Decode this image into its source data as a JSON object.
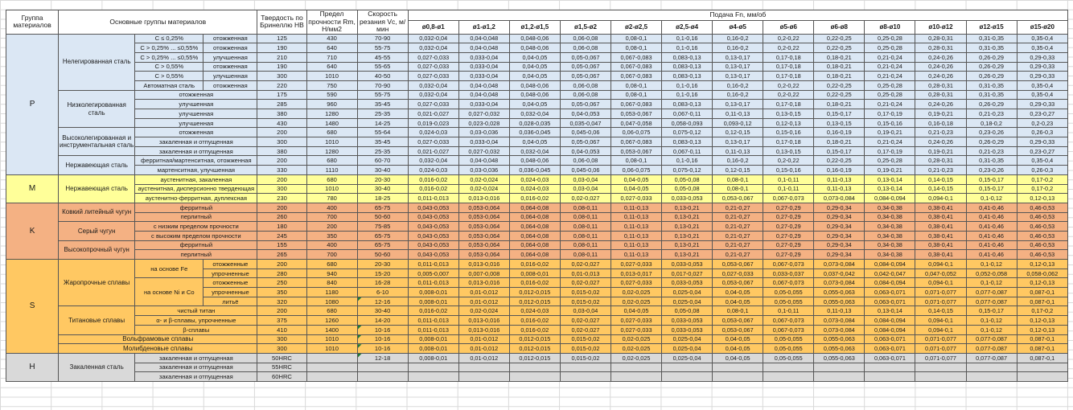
{
  "colors": {
    "groups": {
      "p": "#DBE7F4",
      "m": "#FFFF99",
      "k": "#F4B183",
      "s": "#FFC862",
      "h": "#D9D9D9"
    },
    "marker": "#1E7B34",
    "border": "#565656",
    "grid": "#D9D9D9"
  },
  "table": {
    "headers": {
      "group": "Группа материалов",
      "main_groups": "Основные группы материалов",
      "hardness": "Твердость по Бринеллю HB",
      "strength": "Предел прочности Rm, Н/мм2",
      "speed": "Скорость резания Vc, м/мин",
      "feed": "Подача Fn, мм/об",
      "diameters": [
        "ø0,8-ø1",
        "ø1-ø1,2",
        "ø1,2-ø1,5",
        "ø1,5-ø2",
        "ø2-ø2,5",
        "ø2,5-ø4",
        "ø4-ø5",
        "ø5-ø6",
        "ø6-ø8",
        "ø8-ø10",
        "ø10-ø12",
        "ø12-ø15",
        "ø15-ø20"
      ]
    },
    "patterns": {
      "A": [
        "0,032-0,04",
        "0,04-0,048",
        "0,048-0,06",
        "0,06-0,08",
        "0,08-0,1",
        "0,1-0,16",
        "0,16-0,2",
        "0,2-0,22",
        "0,22-0,25",
        "0,25-0,28",
        "0,28-0,31",
        "0,31-0,35",
        "0,35-0,4"
      ],
      "B": [
        "0,027-0,033",
        "0,033-0,04",
        "0,04-0,05",
        "0,05-0,067",
        "0,067-0,083",
        "0,083-0,13",
        "0,13-0,17",
        "0,17-0,18",
        "0,18-0,21",
        "0,21-0,24",
        "0,24-0,26",
        "0,26-0,29",
        "0,29-0,33"
      ],
      "C": [
        "0,021-0,027",
        "0,027-0,032",
        "0,032-0,04",
        "0,04-0,053",
        "0,053-0,067",
        "0,067-0,11",
        "0,11-0,13",
        "0,13-0,15",
        "0,15-0,17",
        "0,17-0,19",
        "0,19-0,21",
        "0,21-0,23",
        "0,23-0,27"
      ],
      "D": [
        "0,019-0,023",
        "0,023-0,028",
        "0,028-0,035",
        "0,035-0,047",
        "0,047-0,058",
        "0,058-0,093",
        "0,093-0,12",
        "0,12-0,13",
        "0,13-0,15",
        "0,15-0,16",
        "0,16-0,18",
        "0,18-0,2",
        "0,2-0,23"
      ],
      "E": [
        "0,024-0,03",
        "0,03-0,036",
        "0,036-0,045",
        "0,045-0,06",
        "0,06-0,075",
        "0,075-0,12",
        "0,12-0,15",
        "0,15-0,16",
        "0,16-0,19",
        "0,19-0,21",
        "0,21-0,23",
        "0,23-0,26",
        "0,26-0,3"
      ],
      "F": [
        "0,016-0,02",
        "0,02-0,024",
        "0,024-0,03",
        "0,03-0,04",
        "0,04-0,05",
        "0,05-0,08",
        "0,08-0,1",
        "0,1-0,11",
        "0,11-0,13",
        "0,13-0,14",
        "0,14-0,15",
        "0,15-0,17",
        "0,17-0,2"
      ],
      "G": [
        "0,011-0,013",
        "0,013-0,016",
        "0,016-0,02",
        "0,02-0,027",
        "0,027-0,033",
        "0,033-0,053",
        "0,053-0,067",
        "0,067-0,073",
        "0,073-0,084",
        "0,084-0,094",
        "0,094-0,1",
        "0,1-0,12",
        "0,12-0,13"
      ],
      "K": [
        "0,043-0,053",
        "0,053-0,064",
        "0,064-0,08",
        "0,08-0,11",
        "0,11-0,13",
        "0,13-0,21",
        "0,21-0,27",
        "0,27-0,29",
        "0,29-0,34",
        "0,34-0,38",
        "0,38-0,41",
        "0,41-0,46",
        "0,46-0,53"
      ],
      "I": [
        "0,005-0,007",
        "0,007-0,008",
        "0,008-0,01",
        "0,01-0,013",
        "0,013-0,017",
        "0,017-0,027",
        "0,027-0,033",
        "0,033-0,037",
        "0,037-0,042",
        "0,042-0,047",
        "0,047-0,052",
        "0,052-0,058",
        "0,058-0,062"
      ],
      "J": [
        "0,008-0,01",
        "0,01-0,012",
        "0,012-0,015",
        "0,015-0,02",
        "0,02-0,025",
        "0,025-0,04",
        "0,04-0,05",
        "0,05-0,055",
        "0,055-0,063",
        "0,063-0,071",
        "0,071-0,077",
        "0,077-0,087",
        "0,087-0,1"
      ],
      "X": [
        "",
        "",
        "",
        "",
        "",
        "",
        "",
        "",
        "",
        "",
        "",
        "",
        ""
      ]
    },
    "rows": [
      {
        "g": "p",
        "lead": [
          {
            "t": "P",
            "rs": 15,
            "k": "group"
          },
          {
            "t": "Нелегированная сталь",
            "rs": 6,
            "k": "family"
          },
          {
            "t": "C ≤ 0,25%",
            "k": "spec"
          },
          {
            "t": "отожженная",
            "k": "cond"
          }
        ],
        "hb": "125",
        "rm": "430",
        "vc": "70-90",
        "f": "A"
      },
      {
        "g": "p",
        "lead": [
          {
            "t": "C > 0,25% ... ≤0,55%",
            "k": "spec"
          },
          {
            "t": "отожженная",
            "k": "cond"
          }
        ],
        "hb": "190",
        "rm": "640",
        "vc": "55-75",
        "f": "A"
      },
      {
        "g": "p",
        "lead": [
          {
            "t": "C > 0,25% ... ≤0,55%",
            "k": "spec"
          },
          {
            "t": "улучшенная",
            "k": "cond"
          }
        ],
        "hb": "210",
        "rm": "710",
        "vc": "45-55",
        "f": "B"
      },
      {
        "g": "p",
        "lead": [
          {
            "t": "C > 0,55%",
            "k": "spec"
          },
          {
            "t": "отожженная",
            "k": "cond"
          }
        ],
        "hb": "190",
        "rm": "640",
        "vc": "55-65",
        "f": "B"
      },
      {
        "g": "p",
        "lead": [
          {
            "t": "C > 0,55%",
            "k": "spec"
          },
          {
            "t": "улучшенная",
            "k": "cond"
          }
        ],
        "hb": "300",
        "rm": "1010",
        "vc": "40-50",
        "f": "B"
      },
      {
        "g": "p",
        "lead": [
          {
            "t": "Автоматная сталь",
            "k": "spec"
          },
          {
            "t": "отожженная",
            "k": "cond"
          }
        ],
        "hb": "220",
        "rm": "750",
        "vc": "70-90",
        "f": "A"
      },
      {
        "g": "p",
        "lead": [
          {
            "t": "Низколегированная сталь",
            "rs": 4,
            "k": "family"
          },
          {
            "t": "отожженная",
            "cs": 2,
            "k": "cond"
          }
        ],
        "hb": "175",
        "rm": "590",
        "vc": "55-75",
        "f": "A"
      },
      {
        "g": "p",
        "lead": [
          {
            "t": "улучшенная",
            "cs": 2,
            "k": "cond"
          }
        ],
        "hb": "285",
        "rm": "960",
        "vc": "35-45",
        "f": "B"
      },
      {
        "g": "p",
        "lead": [
          {
            "t": "улучшенная",
            "cs": 2,
            "k": "cond"
          }
        ],
        "hb": "380",
        "rm": "1280",
        "vc": "25-35",
        "f": "C"
      },
      {
        "g": "p",
        "lead": [
          {
            "t": "улучшенная",
            "cs": 2,
            "k": "cond"
          }
        ],
        "hb": "430",
        "rm": "1480",
        "vc": "14-25",
        "f": "D"
      },
      {
        "g": "p",
        "lead": [
          {
            "t": "Высоколегированная и инструментальная сталь",
            "rs": 3,
            "k": "family"
          },
          {
            "t": "отожженная",
            "cs": 2,
            "k": "cond"
          }
        ],
        "hb": "200",
        "rm": "680",
        "vc": "55-64",
        "f": "E"
      },
      {
        "g": "p",
        "lead": [
          {
            "t": "закаленная и отпущенная",
            "cs": 2,
            "k": "cond"
          }
        ],
        "hb": "300",
        "rm": "1010",
        "vc": "35-45",
        "f": "B"
      },
      {
        "g": "p",
        "lead": [
          {
            "t": "закаленная и отпущенная",
            "cs": 2,
            "k": "cond"
          }
        ],
        "hb": "380",
        "rm": "1280",
        "vc": "25-35",
        "f": "C"
      },
      {
        "g": "p",
        "lead": [
          {
            "t": "Нержавеющая сталь",
            "rs": 2,
            "k": "family"
          },
          {
            "t": "ферритная/мартенситная, отожженная",
            "cs": 2,
            "k": "cond"
          }
        ],
        "hb": "200",
        "rm": "680",
        "vc": "60-70",
        "f": "A"
      },
      {
        "g": "p",
        "lead": [
          {
            "t": "мартенситная, улучшенная",
            "cs": 2,
            "k": "cond"
          }
        ],
        "hb": "330",
        "rm": "1110",
        "vc": "30-40",
        "f": "E"
      },
      {
        "g": "m",
        "lead": [
          {
            "t": "M",
            "rs": 3,
            "k": "group"
          },
          {
            "t": "Нержавеющая сталь",
            "rs": 3,
            "k": "family"
          },
          {
            "t": "аустенитная, закаленная",
            "cs": 2,
            "k": "cond"
          }
        ],
        "hb": "200",
        "rm": "680",
        "vc": "20-30",
        "f": "F"
      },
      {
        "g": "m",
        "lead": [
          {
            "t": "аустенитная, дисперсионно твердеющая",
            "cs": 2,
            "k": "cond"
          }
        ],
        "hb": "300",
        "rm": "1010",
        "vc": "30-40",
        "f": "F"
      },
      {
        "g": "m",
        "lead": [
          {
            "t": "аустенитно-ферритная, дуплексная",
            "cs": 2,
            "k": "cond"
          }
        ],
        "hb": "230",
        "rm": "780",
        "vc": "18-25",
        "f": "G"
      },
      {
        "g": "k",
        "lead": [
          {
            "t": "K",
            "rs": 6,
            "k": "group"
          },
          {
            "t": "Ковкий литейный чугун",
            "rs": 2,
            "k": "family"
          },
          {
            "t": "ферритный",
            "cs": 2,
            "k": "cond"
          }
        ],
        "hb": "200",
        "rm": "400",
        "vc": "65-75",
        "f": "K"
      },
      {
        "g": "k",
        "lead": [
          {
            "t": "перлитный",
            "cs": 2,
            "k": "cond"
          }
        ],
        "hb": "260",
        "rm": "700",
        "vc": "50-60",
        "f": "K"
      },
      {
        "g": "k",
        "lead": [
          {
            "t": "Серый чугун",
            "rs": 2,
            "k": "family"
          },
          {
            "t": "с низким пределом прочности",
            "cs": 2,
            "k": "cond"
          }
        ],
        "hb": "180",
        "rm": "200",
        "vc": "75-85",
        "f": "K"
      },
      {
        "g": "k",
        "lead": [
          {
            "t": "с высоким пределом прочности",
            "cs": 2,
            "k": "cond"
          }
        ],
        "hb": "245",
        "rm": "350",
        "vc": "65-75",
        "f": "K"
      },
      {
        "g": "k",
        "lead": [
          {
            "t": "Высокопрочный чугун",
            "rs": 2,
            "k": "family"
          },
          {
            "t": "ферритный",
            "cs": 2,
            "k": "cond"
          }
        ],
        "hb": "155",
        "rm": "400",
        "vc": "65-75",
        "f": "K"
      },
      {
        "g": "k",
        "lead": [
          {
            "t": "перлитный",
            "cs": 2,
            "k": "cond"
          }
        ],
        "hb": "265",
        "rm": "700",
        "vc": "50-60",
        "f": "K"
      },
      {
        "g": "s",
        "lead": [
          {
            "t": "S",
            "rs": 10,
            "k": "group"
          },
          {
            "t": "Жаропрочные сплавы",
            "rs": 5,
            "k": "family"
          },
          {
            "t": "на основе Fe",
            "rs": 2,
            "k": "spec"
          },
          {
            "t": "отожженные",
            "k": "cond"
          }
        ],
        "hb": "200",
        "rm": "680",
        "vc": "20-30",
        "f": "G"
      },
      {
        "g": "s",
        "lead": [
          {
            "t": "упрочненные",
            "k": "cond"
          }
        ],
        "hb": "280",
        "rm": "940",
        "vc": "15-20",
        "f": "I"
      },
      {
        "g": "s",
        "lead": [
          {
            "t": "на основе Ni и Co",
            "rs": 3,
            "k": "spec"
          },
          {
            "t": "отожженные",
            "k": "cond"
          }
        ],
        "hb": "250",
        "rm": "840",
        "vc": "16-28",
        "f": "G"
      },
      {
        "g": "s",
        "lead": [
          {
            "t": "упрочненные",
            "k": "cond"
          }
        ],
        "hb": "350",
        "rm": "1180",
        "vc": "6-10",
        "f": "J"
      },
      {
        "g": "s",
        "lead": [
          {
            "t": "литьё",
            "k": "cond"
          }
        ],
        "hb": "320",
        "rm": "1080",
        "vc": "12-16",
        "mk": true,
        "f": "J"
      },
      {
        "g": "s",
        "lead": [
          {
            "t": "Титановые сплавы",
            "rs": 3,
            "k": "family"
          },
          {
            "t": "чистый титан",
            "cs": 2,
            "k": "cond"
          }
        ],
        "hb": "200",
        "rm": "680",
        "vc": "30-40",
        "f": "F"
      },
      {
        "g": "s",
        "lead": [
          {
            "t": "α- и β-сплавы, упрочненные",
            "cs": 2,
            "k": "cond"
          }
        ],
        "hb": "375",
        "rm": "1260",
        "vc": "14-20",
        "f": "G"
      },
      {
        "g": "s",
        "lead": [
          {
            "t": "β-сплавы",
            "cs": 2,
            "k": "cond"
          }
        ],
        "hb": "410",
        "rm": "1400",
        "vc": "10-16",
        "mk": true,
        "f": "G"
      },
      {
        "g": "s",
        "lead": [
          {
            "t": "Вольфрамовые сплавы",
            "cs": 3,
            "k": "family"
          }
        ],
        "hb": "300",
        "rm": "1010",
        "vc": "10-16",
        "mk": true,
        "f": "J"
      },
      {
        "g": "s",
        "lead": [
          {
            "t": "Молибденовые сплавы",
            "cs": 3,
            "k": "family"
          }
        ],
        "hb": "300",
        "rm": "1010",
        "vc": "10-16",
        "mk": true,
        "f": "J"
      },
      {
        "g": "h",
        "lead": [
          {
            "t": "H",
            "rs": 3,
            "k": "group"
          },
          {
            "t": "Закаленная сталь",
            "rs": 3,
            "k": "family"
          },
          {
            "t": "закаленная и отпущенная",
            "cs": 2,
            "k": "cond"
          }
        ],
        "hb": "50HRC",
        "rm": "",
        "vc": "12-18",
        "mk": true,
        "f": "J"
      },
      {
        "g": "h",
        "lead": [
          {
            "t": "закаленная и отпущенная",
            "cs": 2,
            "k": "cond"
          }
        ],
        "hb": "55HRC",
        "rm": "",
        "vc": "",
        "f": "X"
      },
      {
        "g": "h",
        "lead": [
          {
            "t": "закаленная и отпущенная",
            "cs": 2,
            "k": "cond"
          }
        ],
        "hb": "60HRC",
        "rm": "",
        "vc": "",
        "f": "X"
      }
    ]
  }
}
